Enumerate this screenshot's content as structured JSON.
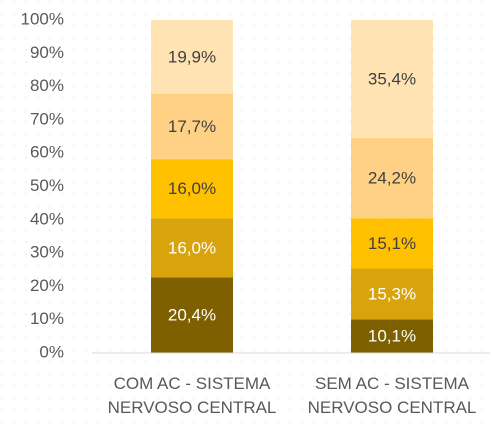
{
  "chart_data": {
    "type": "bar",
    "stacking": "percent",
    "categories": [
      "COM AC - SISTEMA NERVOSO CENTRAL",
      "SEM AC - SISTEMA NERVOSO CENTRAL"
    ],
    "series": [
      {
        "color": "#7f6000",
        "label_color": "#ffffff",
        "values": [
          20.4,
          10.1
        ],
        "value_labels": [
          "20,4%",
          "10,1%"
        ]
      },
      {
        "color": "#d9a30c",
        "label_color": "#ffffff",
        "values": [
          16.0,
          15.3
        ],
        "value_labels": [
          "16,0%",
          "15,3%"
        ]
      },
      {
        "color": "#ffc000",
        "label_color": "#404040",
        "values": [
          16.0,
          15.1
        ],
        "value_labels": [
          "16,0%",
          "15,1%"
        ]
      },
      {
        "color": "#ffd185",
        "label_color": "#404040",
        "values": [
          17.7,
          24.2
        ],
        "value_labels": [
          "17,7%",
          "24,2%"
        ]
      },
      {
        "color": "#ffe3b3",
        "label_color": "#404040",
        "values": [
          19.9,
          35.4
        ],
        "value_labels": [
          "19,9%",
          "35,4%"
        ]
      }
    ],
    "ylim": [
      0,
      100
    ],
    "yticks": [
      {
        "value": 0,
        "label": "0%"
      },
      {
        "value": 10,
        "label": "10%"
      },
      {
        "value": 20,
        "label": "20%"
      },
      {
        "value": 30,
        "label": "30%"
      },
      {
        "value": 40,
        "label": "40%"
      },
      {
        "value": 50,
        "label": "50%"
      },
      {
        "value": 60,
        "label": "60%"
      },
      {
        "value": 70,
        "label": "70%"
      },
      {
        "value": 80,
        "label": "80%"
      },
      {
        "value": 90,
        "label": "90%"
      },
      {
        "value": 100,
        "label": "100%"
      }
    ]
  }
}
